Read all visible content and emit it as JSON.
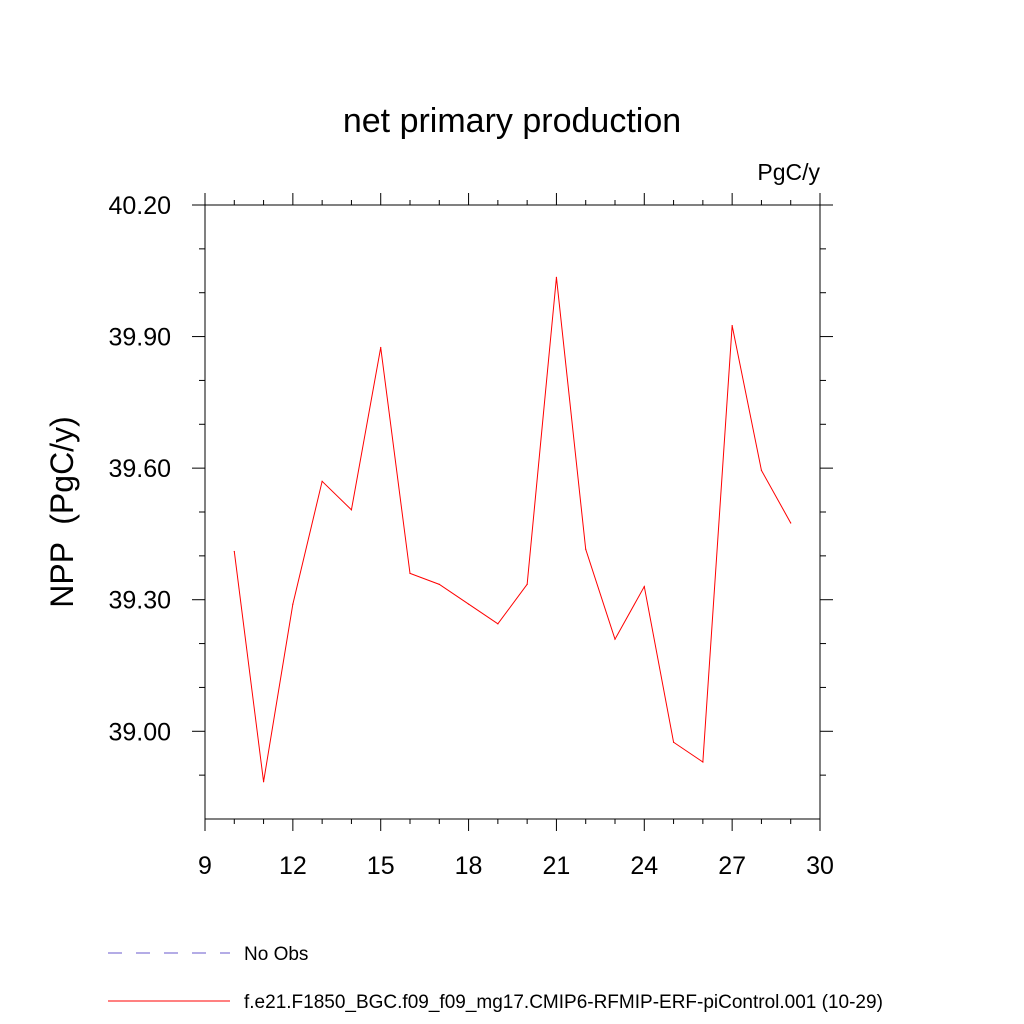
{
  "chart_data": {
    "type": "line",
    "title": "net primary production",
    "units": "PgC/y",
    "xlabel": "",
    "ylabel": "NPP  (PgC/y)",
    "xlim": [
      9,
      30
    ],
    "ylim": [
      38.8,
      40.2
    ],
    "x_ticks": [
      9,
      12,
      15,
      18,
      21,
      24,
      27,
      30
    ],
    "x_tick_labels": [
      "9",
      "12",
      "15",
      "18",
      "21",
      "24",
      "27",
      "30"
    ],
    "y_ticks": [
      39.0,
      39.3,
      39.6,
      39.9,
      40.2
    ],
    "y_tick_labels": [
      "39.00",
      "39.30",
      "39.60",
      "39.90",
      "40.20"
    ],
    "y_minor_ticks": [
      38.9,
      39.1,
      39.2,
      39.4,
      39.5,
      39.7,
      39.8,
      40.0,
      40.1
    ],
    "grid": false,
    "legend_position": "bottom-left",
    "series": [
      {
        "name": "No Obs",
        "color": "#6a5acd",
        "dash": "dashed",
        "x": [],
        "y": []
      },
      {
        "name": "f.e21.F1850_BGC.f09_f09_mg17.CMIP6-RFMIP-ERF-piControl.001 (10-29)",
        "color": "#ff0000",
        "dash": "solid",
        "x": [
          10,
          11,
          12,
          13,
          14,
          15,
          16,
          17,
          18,
          19,
          20,
          21,
          22,
          23,
          24,
          25,
          26,
          27,
          28,
          29
        ],
        "y": [
          39.41,
          38.885,
          39.29,
          39.57,
          39.505,
          39.875,
          39.36,
          39.335,
          39.29,
          39.245,
          39.335,
          40.035,
          39.415,
          39.21,
          39.33,
          38.975,
          38.93,
          39.925,
          39.595,
          39.475
        ]
      }
    ]
  }
}
